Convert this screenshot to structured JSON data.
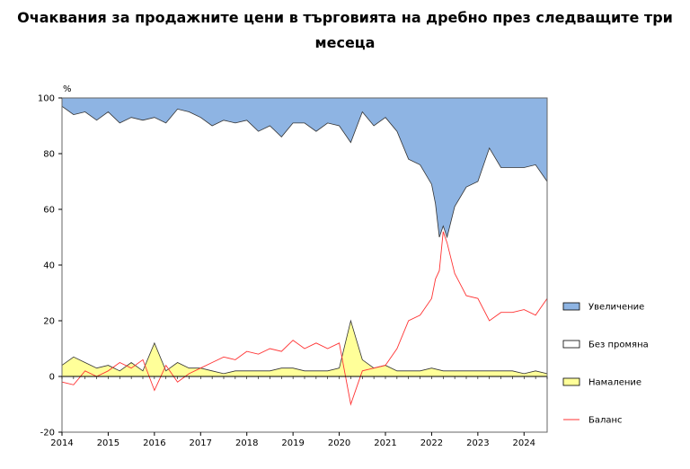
{
  "chart_data": {
    "type": "area",
    "title_line1": "Очаквания за продажните цени в търговията на дребно през следващите три",
    "title_line2": "месеца",
    "y_unit": "%",
    "xlabel": "",
    "ylabel": "",
    "ylim": [
      -20,
      100
    ],
    "y_ticks": [
      "-20",
      "0",
      "20",
      "40",
      "60",
      "80",
      "100"
    ],
    "y_tick_values": [
      -20,
      0,
      20,
      40,
      60,
      80,
      100
    ],
    "x_range": [
      2014.0,
      2024.5
    ],
    "x_ticks": [
      "2014",
      "2015",
      "2016",
      "2017",
      "2018",
      "2019",
      "2020",
      "2021",
      "2022",
      "2023",
      "2024"
    ],
    "x_tick_values": [
      2014,
      2015,
      2016,
      2017,
      2018,
      2019,
      2020,
      2021,
      2022,
      2023,
      2024
    ],
    "grid": false,
    "legend_position": "right",
    "colors": {
      "increase": "#8eb4e3",
      "no_change": "#ffffff",
      "decrease": "#ffff99",
      "balance": "#ff3333",
      "outline": "#333333"
    },
    "series": [
      {
        "name": "Увеличение",
        "kind": "area-top",
        "description": "share expecting increase (area from upper boundary to 100)",
        "x": [
          2014.0,
          2014.25,
          2014.5,
          2014.75,
          2015.0,
          2015.25,
          2015.5,
          2015.75,
          2016.0,
          2016.25,
          2016.5,
          2016.75,
          2017.0,
          2017.25,
          2017.5,
          2017.75,
          2018.0,
          2018.25,
          2018.5,
          2018.75,
          2019.0,
          2019.25,
          2019.5,
          2019.75,
          2020.0,
          2020.25,
          2020.5,
          2020.75,
          2021.0,
          2021.25,
          2021.5,
          2021.75,
          2022.0,
          2022.083,
          2022.167,
          2022.25,
          2022.333,
          2022.5,
          2022.75,
          2023.0,
          2023.25,
          2023.5,
          2023.75,
          2024.0,
          2024.25,
          2024.5
        ],
        "values": [
          97,
          94,
          95,
          92,
          95,
          91,
          93,
          92,
          93,
          91,
          96,
          95,
          93,
          90,
          92,
          91,
          92,
          88,
          90,
          86,
          91,
          91,
          88,
          91,
          90,
          84,
          95,
          90,
          93,
          88,
          78,
          76,
          69,
          62,
          50,
          54,
          50,
          61,
          68,
          70,
          82,
          75,
          75,
          75,
          76,
          70
        ]
      },
      {
        "name": "Без промяна",
        "kind": "area-middle",
        "description": "share expecting no change (band between decrease and increase)"
      },
      {
        "name": "Намаление",
        "kind": "area-bottom",
        "description": "share expecting decrease (area from 0 to value)",
        "x": [
          2014.0,
          2014.25,
          2014.5,
          2014.75,
          2015.0,
          2015.25,
          2015.5,
          2015.75,
          2016.0,
          2016.25,
          2016.5,
          2016.75,
          2017.0,
          2017.25,
          2017.5,
          2017.75,
          2018.0,
          2018.25,
          2018.5,
          2018.75,
          2019.0,
          2019.25,
          2019.5,
          2019.75,
          2020.0,
          2020.25,
          2020.5,
          2020.75,
          2021.0,
          2021.25,
          2021.5,
          2021.75,
          2022.0,
          2022.25,
          2022.5,
          2022.75,
          2023.0,
          2023.25,
          2023.5,
          2023.75,
          2024.0,
          2024.25,
          2024.5
        ],
        "values": [
          4,
          7,
          5,
          3,
          4,
          2,
          5,
          2,
          12,
          2,
          5,
          3,
          3,
          2,
          1,
          2,
          2,
          2,
          2,
          3,
          3,
          2,
          2,
          2,
          3,
          20,
          6,
          3,
          4,
          2,
          2,
          2,
          3,
          2,
          2,
          2,
          2,
          2,
          2,
          2,
          1,
          2,
          1
        ]
      },
      {
        "name": "Баланс",
        "kind": "line",
        "description": "balance = increase minus decrease",
        "x": [
          2014.0,
          2014.25,
          2014.5,
          2014.75,
          2015.0,
          2015.25,
          2015.5,
          2015.75,
          2016.0,
          2016.25,
          2016.5,
          2016.75,
          2017.0,
          2017.25,
          2017.5,
          2017.75,
          2018.0,
          2018.25,
          2018.5,
          2018.75,
          2019.0,
          2019.25,
          2019.5,
          2019.75,
          2020.0,
          2020.25,
          2020.5,
          2020.75,
          2021.0,
          2021.25,
          2021.5,
          2021.75,
          2022.0,
          2022.083,
          2022.167,
          2022.25,
          2022.333,
          2022.5,
          2022.75,
          2023.0,
          2023.25,
          2023.5,
          2023.75,
          2024.0,
          2024.25,
          2024.5
        ],
        "values": [
          -2,
          -3,
          2,
          0,
          2,
          5,
          3,
          6,
          -5,
          4,
          -2,
          1,
          3,
          5,
          7,
          6,
          9,
          8,
          10,
          9,
          13,
          10,
          12,
          10,
          12,
          -10,
          2,
          3,
          4,
          10,
          20,
          22,
          28,
          35,
          38,
          52,
          48,
          37,
          29,
          28,
          20,
          23,
          23,
          24,
          22,
          28
        ]
      }
    ]
  }
}
